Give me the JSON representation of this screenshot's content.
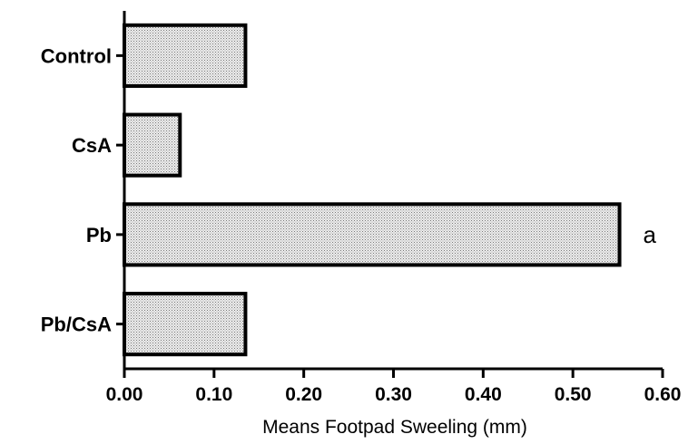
{
  "chart_data": {
    "type": "bar",
    "orientation": "horizontal",
    "categories": [
      "Control",
      "CsA",
      "Pb",
      "Pb/CsA"
    ],
    "values": [
      0.135,
      0.062,
      0.552,
      0.135
    ],
    "annotations": [
      {
        "category": "Pb",
        "text": "a"
      }
    ],
    "xlabel": "Means Footpad Sweeling (mm)",
    "ylabel": "",
    "title": "",
    "xlim": [
      0,
      0.6
    ],
    "xticks": [
      "0.00",
      "0.10",
      "0.20",
      "0.30",
      "0.40",
      "0.50",
      "0.60"
    ],
    "grid": false,
    "bar_fill": "stippled-gray",
    "colors": {
      "bar_outline": "#000000",
      "bar_fill_base": "#e8e8e8",
      "stipple": "#808080"
    }
  }
}
